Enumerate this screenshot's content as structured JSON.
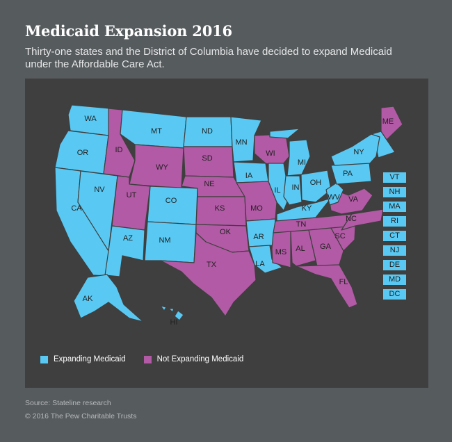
{
  "header": {
    "title": "Medicaid Expansion 2016",
    "subtitle": "Thirty-one states and the District of Columbia have decided to expand Medicaid under the Affordable Care Act."
  },
  "colors": {
    "expanding": "#59c9f3",
    "not_expanding": "#b25aa5",
    "page_background": "#565b5e",
    "map_background": "#3f3f3f"
  },
  "legend": {
    "expanding_label": "Expanding Medicaid",
    "not_expanding_label": "Not Expanding Medicaid"
  },
  "states": [
    {
      "abbr": "WA",
      "status": "expanding"
    },
    {
      "abbr": "OR",
      "status": "expanding"
    },
    {
      "abbr": "CA",
      "status": "expanding"
    },
    {
      "abbr": "NV",
      "status": "expanding"
    },
    {
      "abbr": "ID",
      "status": "not_expanding"
    },
    {
      "abbr": "MT",
      "status": "expanding"
    },
    {
      "abbr": "WY",
      "status": "not_expanding"
    },
    {
      "abbr": "UT",
      "status": "not_expanding"
    },
    {
      "abbr": "AZ",
      "status": "expanding"
    },
    {
      "abbr": "CO",
      "status": "expanding"
    },
    {
      "abbr": "NM",
      "status": "expanding"
    },
    {
      "abbr": "ND",
      "status": "expanding"
    },
    {
      "abbr": "SD",
      "status": "not_expanding"
    },
    {
      "abbr": "NE",
      "status": "not_expanding"
    },
    {
      "abbr": "KS",
      "status": "not_expanding"
    },
    {
      "abbr": "OK",
      "status": "not_expanding"
    },
    {
      "abbr": "TX",
      "status": "not_expanding"
    },
    {
      "abbr": "MN",
      "status": "expanding"
    },
    {
      "abbr": "IA",
      "status": "expanding"
    },
    {
      "abbr": "MO",
      "status": "not_expanding"
    },
    {
      "abbr": "AR",
      "status": "expanding"
    },
    {
      "abbr": "LA",
      "status": "expanding"
    },
    {
      "abbr": "WI",
      "status": "not_expanding"
    },
    {
      "abbr": "IL",
      "status": "expanding"
    },
    {
      "abbr": "MI",
      "status": "expanding"
    },
    {
      "abbr": "IN",
      "status": "expanding"
    },
    {
      "abbr": "OH",
      "status": "expanding"
    },
    {
      "abbr": "KY",
      "status": "expanding"
    },
    {
      "abbr": "TN",
      "status": "not_expanding"
    },
    {
      "abbr": "MS",
      "status": "not_expanding"
    },
    {
      "abbr": "AL",
      "status": "not_expanding"
    },
    {
      "abbr": "GA",
      "status": "not_expanding"
    },
    {
      "abbr": "FL",
      "status": "not_expanding"
    },
    {
      "abbr": "SC",
      "status": "not_expanding"
    },
    {
      "abbr": "NC",
      "status": "not_expanding"
    },
    {
      "abbr": "VA",
      "status": "not_expanding"
    },
    {
      "abbr": "WV",
      "status": "expanding"
    },
    {
      "abbr": "PA",
      "status": "expanding"
    },
    {
      "abbr": "NY",
      "status": "expanding"
    },
    {
      "abbr": "ME",
      "status": "not_expanding"
    },
    {
      "abbr": "AK",
      "status": "expanding"
    },
    {
      "abbr": "HI",
      "status": "expanding"
    }
  ],
  "small_states": [
    {
      "abbr": "VT",
      "status": "expanding"
    },
    {
      "abbr": "NH",
      "status": "expanding"
    },
    {
      "abbr": "MA",
      "status": "expanding"
    },
    {
      "abbr": "RI",
      "status": "expanding"
    },
    {
      "abbr": "CT",
      "status": "expanding"
    },
    {
      "abbr": "NJ",
      "status": "expanding"
    },
    {
      "abbr": "DE",
      "status": "expanding"
    },
    {
      "abbr": "MD",
      "status": "expanding"
    },
    {
      "abbr": "DC",
      "status": "expanding"
    }
  ],
  "footer": {
    "source": "Source: Stateline research",
    "copyright": "© 2016 The Pew Charitable Trusts"
  }
}
